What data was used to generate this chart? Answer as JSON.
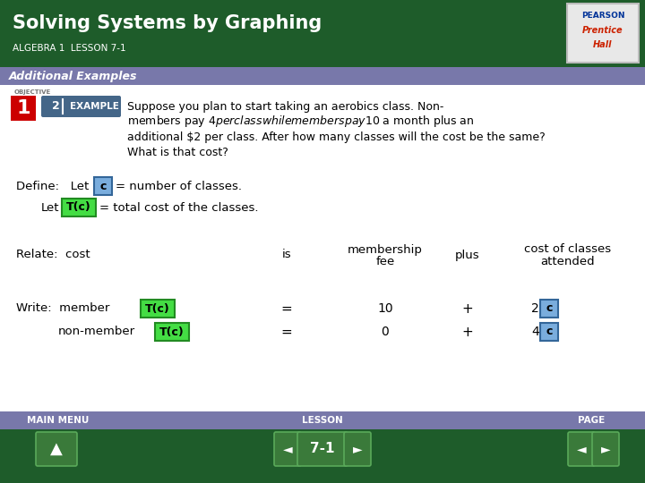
{
  "title": "Solving Systems by Graphing",
  "subtitle": "ALGEBRA 1  LESSON 7-1",
  "header_bg": "#1e5c2a",
  "banner_bg": "#7878aa",
  "banner_text": "Additional Examples",
  "body_bg": "#ffffff",
  "footer_bg": "#1e5c2a",
  "footer_banner_bg": "#7878aa",
  "objective_label": "OBJECTIVE",
  "c_box_text": "c",
  "c_box_bg": "#7aaddd",
  "c_box_border": "#336699",
  "tc_box_text": "T(c)",
  "tc_box_bg": "#44dd44",
  "tc_box_border": "#228b22",
  "footer_main_menu": "MAIN MENU",
  "footer_lesson": "LESSON",
  "footer_page": "PAGE",
  "footer_lesson_num": "7-1",
  "nav_button_bg": "#3a7a3a",
  "nav_button_border": "#5aaa5a",
  "problem_lines": [
    "Suppose you plan to start taking an aerobics class. Non-",
    "members pay $4 per class while members pay $10 a month plus an",
    "additional $2 per class. After how many classes will the cost be the same?",
    "What is that cost?"
  ]
}
